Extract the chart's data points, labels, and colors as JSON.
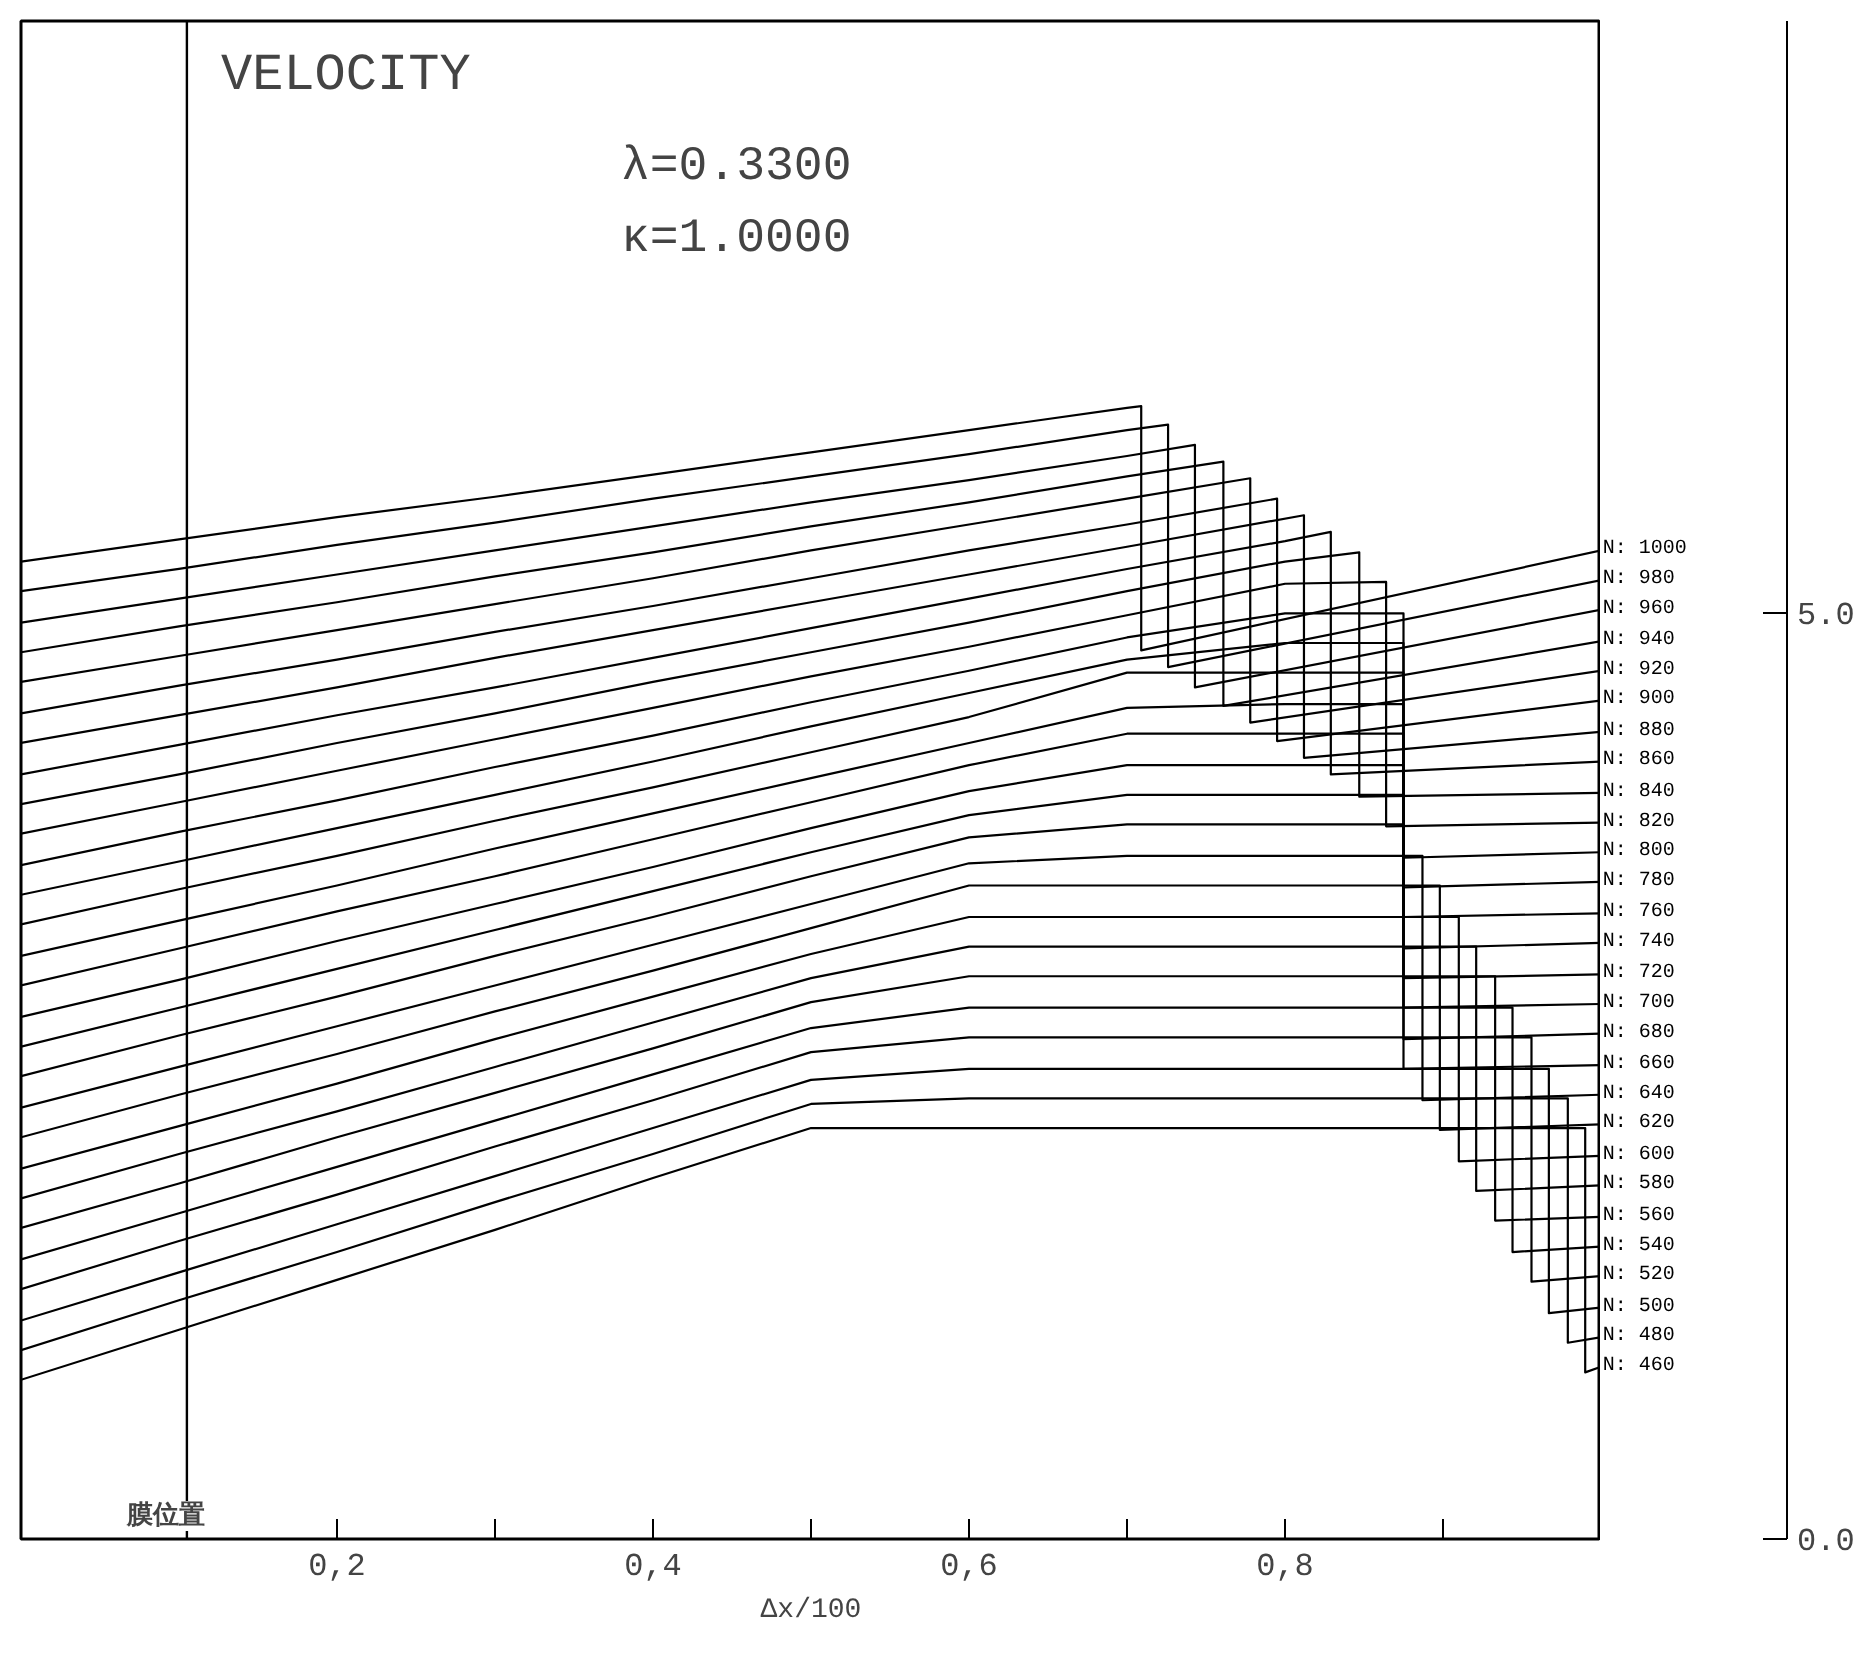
{
  "chart_data": {
    "type": "line",
    "title": "VELOCITY",
    "xlabel": "Δx/100",
    "annotations": [
      "λ=0.3300",
      "κ=1.0000"
    ],
    "xlim": [
      0,
      1
    ],
    "ylim": [
      0,
      8.2
    ],
    "xticks": [
      {
        "value": 0.2,
        "label": "0,2"
      },
      {
        "value": 0.3,
        "label": null
      },
      {
        "value": 0.4,
        "label": "0,4"
      },
      {
        "value": 0.5,
        "label": null
      },
      {
        "value": 0.6,
        "label": "0,6"
      },
      {
        "value": 0.7,
        "label": null
      },
      {
        "value": 0.8,
        "label": "0,8"
      },
      {
        "value": 0.9,
        "label": null
      }
    ],
    "yticks": [
      {
        "value": 0,
        "label": "0.0"
      },
      {
        "value": 5,
        "label": "5.0"
      }
    ],
    "grid": false,
    "line_style": "solid",
    "ref_lines": [
      {
        "axis": "x",
        "value": 0.105,
        "label": "膜位置",
        "color": "#000000"
      }
    ],
    "series": [
      {
        "name": "N: 1000",
        "color": "#000000",
        "x": [
          0,
          0.1,
          0.2,
          0.3,
          0.4,
          0.5,
          0.6,
          0.7,
          0.709,
          0.709,
          1
        ],
        "values": [
          5.28,
          5.4,
          5.52,
          5.63,
          5.75,
          5.87,
          5.99,
          6.11,
          6.12,
          4.8,
          5.34
        ]
      },
      {
        "name": "N: 980",
        "color": "#000000",
        "x": [
          0,
          0.1,
          0.2,
          0.3,
          0.4,
          0.5,
          0.6,
          0.7,
          0.726,
          0.726,
          1
        ],
        "values": [
          5.12,
          5.24,
          5.37,
          5.49,
          5.62,
          5.74,
          5.86,
          5.99,
          6.02,
          4.71,
          5.18
        ]
      },
      {
        "name": "N: 960",
        "color": "#000000",
        "x": [
          0,
          0.1,
          0.2,
          0.3,
          0.4,
          0.5,
          0.6,
          0.7,
          0.743,
          0.743,
          1
        ],
        "values": [
          4.95,
          5.08,
          5.21,
          5.34,
          5.47,
          5.6,
          5.72,
          5.85,
          5.91,
          4.6,
          5.02
        ]
      },
      {
        "name": "N: 940",
        "color": "#000000",
        "x": [
          0,
          0.1,
          0.2,
          0.3,
          0.4,
          0.5,
          0.6,
          0.7,
          0.761,
          0.761,
          1
        ],
        "values": [
          4.79,
          4.93,
          5.06,
          5.2,
          5.33,
          5.47,
          5.6,
          5.74,
          5.82,
          4.5,
          4.85
        ]
      },
      {
        "name": "N: 920",
        "color": "#000000",
        "x": [
          0,
          0.1,
          0.2,
          0.3,
          0.4,
          0.5,
          0.6,
          0.7,
          0.778,
          0.778,
          1
        ],
        "values": [
          4.63,
          4.77,
          4.91,
          5.05,
          5.19,
          5.34,
          5.48,
          5.62,
          5.73,
          4.41,
          4.69
        ]
      },
      {
        "name": "N: 900",
        "color": "#000000",
        "x": [
          0,
          0.1,
          0.2,
          0.3,
          0.4,
          0.5,
          0.6,
          0.7,
          0.795,
          0.795,
          1
        ],
        "values": [
          4.46,
          4.61,
          4.75,
          4.9,
          5.04,
          5.19,
          5.34,
          5.48,
          5.62,
          4.31,
          4.53
        ]
      },
      {
        "name": "N: 880",
        "color": "#000000",
        "x": [
          0,
          0.1,
          0.2,
          0.3,
          0.4,
          0.5,
          0.6,
          0.7,
          0.812,
          0.812,
          1
        ],
        "values": [
          4.3,
          4.45,
          4.6,
          4.76,
          4.91,
          5.06,
          5.21,
          5.36,
          5.53,
          4.22,
          4.36
        ]
      },
      {
        "name": "N: 860",
        "color": "#000000",
        "x": [
          0,
          0.1,
          0.2,
          0.3,
          0.4,
          0.5,
          0.6,
          0.7,
          0.8,
          0.829,
          0.829,
          1
        ],
        "values": [
          4.13,
          4.29,
          4.45,
          4.6,
          4.76,
          4.92,
          5.08,
          5.24,
          5.39,
          5.44,
          4.13,
          4.2
        ]
      },
      {
        "name": "N: 840",
        "color": "#000000",
        "x": [
          0,
          0.1,
          0.2,
          0.3,
          0.4,
          0.5,
          0.6,
          0.7,
          0.8,
          0.847,
          0.847,
          1
        ],
        "values": [
          3.97,
          4.13,
          4.3,
          4.46,
          4.63,
          4.79,
          4.95,
          5.12,
          5.28,
          5.33,
          4.01,
          4.03
        ]
      },
      {
        "name": "N: 820",
        "color": "#000000",
        "x": [
          0,
          0.1,
          0.2,
          0.3,
          0.4,
          0.5,
          0.6,
          0.7,
          0.8,
          0.864,
          0.864,
          1
        ],
        "values": [
          3.81,
          3.98,
          4.15,
          4.32,
          4.49,
          4.66,
          4.82,
          4.99,
          5.16,
          5.17,
          3.85,
          3.87
        ]
      },
      {
        "name": "N: 800",
        "color": "#000000",
        "x": [
          0,
          0.1,
          0.2,
          0.3,
          0.4,
          0.5,
          0.6,
          0.7,
          0.8,
          0.875,
          0.875,
          1
        ],
        "values": [
          3.64,
          3.82,
          3.99,
          4.17,
          4.34,
          4.52,
          4.69,
          4.87,
          5.0,
          5.0,
          3.68,
          3.71
        ]
      },
      {
        "name": "N: 780",
        "color": "#000000",
        "x": [
          0,
          0.1,
          0.2,
          0.3,
          0.4,
          0.5,
          0.6,
          0.7,
          0.8,
          0.875,
          0.875,
          1
        ],
        "values": [
          3.48,
          3.66,
          3.84,
          4.02,
          4.2,
          4.39,
          4.57,
          4.75,
          4.84,
          4.84,
          3.52,
          3.55
        ]
      },
      {
        "name": "N: 760",
        "color": "#000000",
        "x": [
          0,
          0.1,
          0.2,
          0.3,
          0.4,
          0.5,
          0.6,
          0.7,
          0.8,
          0.875,
          0.875,
          1
        ],
        "values": [
          3.32,
          3.51,
          3.69,
          3.88,
          4.06,
          4.25,
          4.44,
          4.68,
          4.68,
          4.68,
          3.36,
          3.38
        ]
      },
      {
        "name": "N: 740",
        "color": "#000000",
        "x": [
          0,
          0.1,
          0.2,
          0.3,
          0.4,
          0.5,
          0.6,
          0.7,
          0.8,
          0.875,
          0.875,
          1
        ],
        "values": [
          3.15,
          3.34,
          3.53,
          3.73,
          3.92,
          4.11,
          4.3,
          4.49,
          4.51,
          4.51,
          3.19,
          3.22
        ]
      },
      {
        "name": "N: 720",
        "color": "#000000",
        "x": [
          0,
          0.1,
          0.2,
          0.3,
          0.4,
          0.5,
          0.6,
          0.7,
          0.8,
          0.875,
          0.875,
          1
        ],
        "values": [
          2.99,
          3.19,
          3.39,
          3.58,
          3.78,
          3.98,
          4.18,
          4.35,
          4.35,
          4.35,
          3.03,
          3.05
        ]
      },
      {
        "name": "N: 700",
        "color": "#000000",
        "x": [
          0,
          0.1,
          0.2,
          0.3,
          0.4,
          0.5,
          0.6,
          0.7,
          0.8,
          0.875,
          0.875,
          1
        ],
        "values": [
          2.82,
          3.02,
          3.23,
          3.43,
          3.63,
          3.84,
          4.04,
          4.18,
          4.18,
          4.18,
          2.87,
          2.89
        ]
      },
      {
        "name": "N: 680",
        "color": "#000000",
        "x": [
          0,
          0.1,
          0.2,
          0.3,
          0.4,
          0.5,
          0.6,
          0.7,
          0.8,
          0.875,
          0.875,
          1
        ],
        "values": [
          2.66,
          2.87,
          3.08,
          3.29,
          3.5,
          3.71,
          3.91,
          4.02,
          4.02,
          4.02,
          2.7,
          2.73
        ]
      },
      {
        "name": "N: 660",
        "color": "#000000",
        "x": [
          0,
          0.1,
          0.2,
          0.3,
          0.4,
          0.5,
          0.6,
          0.7,
          0.8,
          0.875,
          0.875,
          1
        ],
        "values": [
          2.5,
          2.72,
          2.93,
          3.15,
          3.36,
          3.58,
          3.79,
          3.86,
          3.86,
          3.86,
          2.54,
          2.56
        ]
      },
      {
        "name": "N: 640",
        "color": "#000000",
        "x": [
          0,
          0.1,
          0.2,
          0.3,
          0.4,
          0.5,
          0.6,
          0.7,
          0.8,
          0.887,
          0.887,
          1
        ],
        "values": [
          2.33,
          2.55,
          2.77,
          2.99,
          3.21,
          3.43,
          3.65,
          3.69,
          3.69,
          3.69,
          2.37,
          2.4
        ]
      },
      {
        "name": "N: 620",
        "color": "#000000",
        "x": [
          0,
          0.1,
          0.2,
          0.3,
          0.4,
          0.5,
          0.6,
          0.7,
          0.8,
          0.898,
          0.898,
          1
        ],
        "values": [
          2.17,
          2.4,
          2.62,
          2.85,
          3.07,
          3.3,
          3.53,
          3.53,
          3.53,
          3.53,
          2.21,
          2.24
        ]
      },
      {
        "name": "N: 600",
        "color": "#000000",
        "x": [
          0,
          0.1,
          0.2,
          0.3,
          0.4,
          0.5,
          0.6,
          0.7,
          0.8,
          0.91,
          0.91,
          1
        ],
        "values": [
          2.0,
          2.23,
          2.46,
          2.7,
          2.93,
          3.16,
          3.36,
          3.36,
          3.36,
          3.36,
          2.04,
          2.07
        ]
      },
      {
        "name": "N: 580",
        "color": "#000000",
        "x": [
          0,
          0.1,
          0.2,
          0.3,
          0.4,
          0.5,
          0.6,
          0.7,
          0.8,
          0.921,
          0.921,
          1
        ],
        "values": [
          1.84,
          2.08,
          2.31,
          2.55,
          2.79,
          3.03,
          3.2,
          3.2,
          3.2,
          3.2,
          1.88,
          1.91
        ]
      },
      {
        "name": "N: 560",
        "color": "#000000",
        "x": [
          0,
          0.1,
          0.2,
          0.3,
          0.4,
          0.5,
          0.6,
          0.7,
          0.8,
          0.933,
          0.933,
          1
        ],
        "values": [
          1.68,
          1.92,
          2.17,
          2.41,
          2.65,
          2.9,
          3.04,
          3.04,
          3.04,
          3.04,
          1.72,
          1.74
        ]
      },
      {
        "name": "N: 540",
        "color": "#000000",
        "x": [
          0,
          0.1,
          0.2,
          0.3,
          0.4,
          0.5,
          0.6,
          0.7,
          0.8,
          0.944,
          0.944,
          1
        ],
        "values": [
          1.51,
          1.76,
          2.01,
          2.26,
          2.51,
          2.76,
          2.87,
          2.87,
          2.87,
          2.87,
          1.55,
          1.58
        ]
      },
      {
        "name": "N: 520",
        "color": "#000000",
        "x": [
          0,
          0.1,
          0.2,
          0.3,
          0.4,
          0.5,
          0.6,
          0.7,
          0.8,
          0.956,
          0.956,
          1
        ],
        "values": [
          1.35,
          1.61,
          1.86,
          2.12,
          2.37,
          2.63,
          2.71,
          2.71,
          2.71,
          2.71,
          1.39,
          1.42
        ]
      },
      {
        "name": "N: 500",
        "color": "#000000",
        "x": [
          0,
          0.1,
          0.2,
          0.3,
          0.4,
          0.5,
          0.6,
          0.7,
          0.8,
          0.967,
          0.967,
          1
        ],
        "values": [
          1.18,
          1.44,
          1.7,
          1.96,
          2.22,
          2.48,
          2.54,
          2.54,
          2.54,
          2.54,
          1.22,
          1.25
        ]
      },
      {
        "name": "N: 480",
        "color": "#000000",
        "x": [
          0,
          0.1,
          0.2,
          0.3,
          0.4,
          0.5,
          0.6,
          0.7,
          0.8,
          0.979,
          0.979,
          1
        ],
        "values": [
          1.02,
          1.29,
          1.55,
          1.82,
          2.08,
          2.35,
          2.38,
          2.38,
          2.38,
          2.38,
          1.06,
          1.09
        ]
      },
      {
        "name": "N: 460",
        "color": "#000000",
        "x": [
          0,
          0.1,
          0.2,
          0.3,
          0.4,
          0.5,
          0.6,
          0.7,
          0.8,
          0.99,
          0.99,
          1
        ],
        "values": [
          0.86,
          1.13,
          1.4,
          1.67,
          1.95,
          2.22,
          2.22,
          2.22,
          2.22,
          2.22,
          0.9,
          0.93
        ]
      }
    ]
  }
}
